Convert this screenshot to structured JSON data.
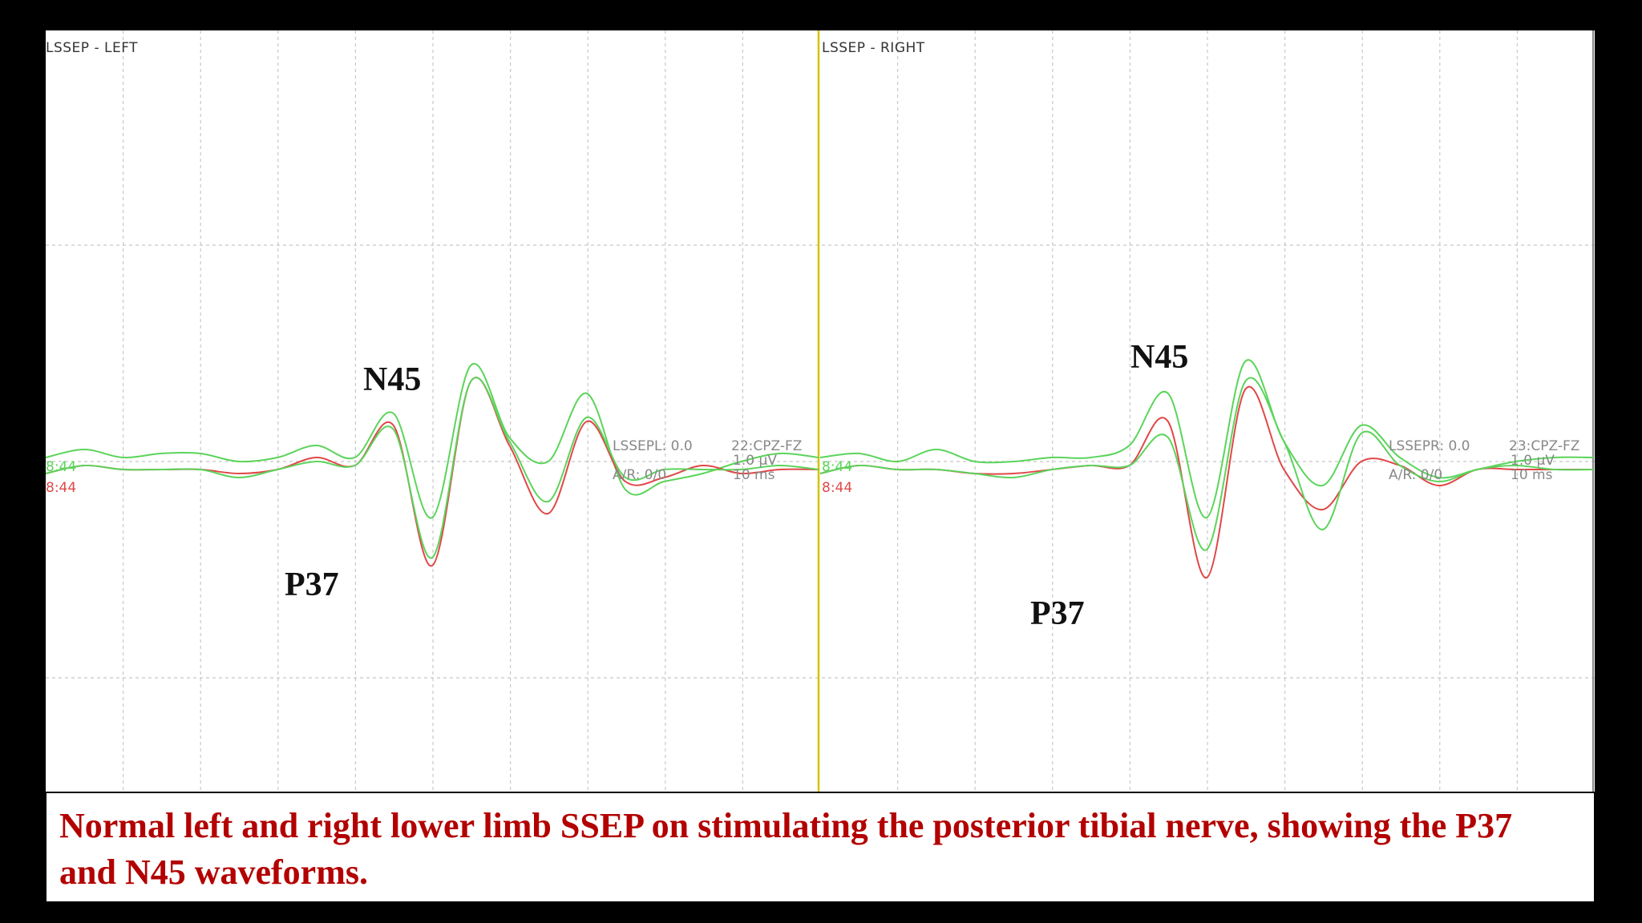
{
  "panels": [
    {
      "title": "LSSEP - LEFT",
      "info": {
        "name": "LSSEPL: 0.0",
        "channel": "22:CPZ-FZ",
        "sensitivity": "1.0 µV",
        "ar": "A/R: 0/0",
        "timebase": "10 ms"
      },
      "trace_labels": [
        "8:44",
        "8:44"
      ]
    },
    {
      "title": "LSSEP - RIGHT",
      "info": {
        "name": "LSSEPR: 0.0",
        "channel": "23:CPZ-FZ",
        "sensitivity": "1.0 µV",
        "ar": "A/R: 0/0",
        "timebase": "10 ms"
      },
      "trace_labels": [
        "8:44",
        "8:44"
      ]
    }
  ],
  "peaks": [
    {
      "label": "N45"
    },
    {
      "label": "P37"
    },
    {
      "label": "N45"
    },
    {
      "label": "P37"
    }
  ],
  "caption": "Normal left and right lower limb SSEP on stimulating the posterior tibial nerve, showing the P37 and N45 waveforms.",
  "colors": {
    "trace_green": "#5bd45b",
    "trace_red": "#e04848",
    "divider": "#d4c400",
    "grid": "#c8c8c8",
    "caption": "#b30000"
  },
  "chart_data": {
    "type": "line",
    "x_unit": "ms",
    "x_per_division": 10,
    "y_per_division": 1.0,
    "panels": [
      {
        "name": "LSSEP - LEFT",
        "series": [
          {
            "color": "green",
            "x": [
              0,
              5,
              10,
              15,
              20,
              25,
              30,
              35,
              40,
              45,
              50,
              55,
              60,
              65,
              70,
              75,
              80,
              85,
              90,
              95,
              100
            ],
            "y": [
              0.05,
              0.15,
              0.05,
              0.1,
              0.1,
              0.0,
              0.05,
              0.2,
              0.05,
              0.6,
              -0.7,
              1.2,
              0.3,
              0.0,
              0.85,
              -0.35,
              -0.25,
              -0.15,
              0.0,
              0.1,
              0.05
            ]
          },
          {
            "color": "red",
            "x": [
              0,
              5,
              10,
              15,
              20,
              25,
              30,
              35,
              40,
              45,
              50,
              55,
              60,
              65,
              70,
              75,
              80,
              85,
              90,
              95,
              100
            ],
            "y": [
              -0.15,
              -0.05,
              -0.1,
              -0.1,
              -0.1,
              -0.15,
              -0.1,
              0.05,
              -0.05,
              0.45,
              -1.3,
              1.0,
              0.2,
              -0.65,
              0.5,
              -0.25,
              -0.2,
              -0.05,
              -0.15,
              -0.1,
              -0.1
            ]
          },
          {
            "color": "green",
            "x": [
              0,
              5,
              10,
              15,
              20,
              25,
              30,
              35,
              40,
              45,
              50,
              55,
              60,
              65,
              70,
              75,
              80,
              85,
              90,
              95,
              100
            ],
            "y": [
              -0.15,
              -0.05,
              -0.1,
              -0.1,
              -0.1,
              -0.2,
              -0.1,
              0.0,
              -0.05,
              0.4,
              -1.2,
              1.0,
              0.25,
              -0.5,
              0.55,
              -0.2,
              -0.1,
              -0.1,
              -0.1,
              -0.05,
              -0.1
            ]
          }
        ]
      },
      {
        "name": "LSSEP - RIGHT",
        "series": [
          {
            "color": "green",
            "x": [
              0,
              5,
              10,
              15,
              20,
              25,
              30,
              35,
              40,
              45,
              50,
              55,
              60,
              65,
              70,
              75,
              80,
              85,
              90,
              95,
              100
            ],
            "y": [
              0.05,
              0.1,
              0.0,
              0.15,
              0.0,
              0.0,
              0.05,
              0.05,
              0.2,
              0.85,
              -0.7,
              1.25,
              0.25,
              -0.3,
              0.45,
              0.05,
              -0.2,
              -0.1,
              0.0,
              0.05,
              0.05
            ]
          },
          {
            "color": "red",
            "x": [
              0,
              5,
              10,
              15,
              20,
              25,
              30,
              35,
              40,
              45,
              50,
              55,
              60,
              65,
              70,
              75,
              80,
              85,
              90,
              95,
              100
            ],
            "y": [
              -0.15,
              -0.05,
              -0.1,
              -0.1,
              -0.15,
              -0.15,
              -0.1,
              -0.05,
              -0.05,
              0.5,
              -1.45,
              0.9,
              -0.1,
              -0.6,
              0.0,
              -0.05,
              -0.3,
              -0.1,
              -0.1,
              -0.1,
              -0.1
            ]
          },
          {
            "color": "green",
            "x": [
              0,
              5,
              10,
              15,
              20,
              25,
              30,
              35,
              40,
              45,
              50,
              55,
              60,
              65,
              70,
              75,
              80,
              85,
              90,
              95,
              100
            ],
            "y": [
              -0.15,
              -0.05,
              -0.1,
              -0.1,
              -0.15,
              -0.2,
              -0.1,
              -0.05,
              -0.05,
              0.3,
              -1.1,
              1.0,
              0.25,
              -0.85,
              0.35,
              -0.05,
              -0.25,
              -0.1,
              -0.05,
              -0.1,
              -0.1
            ]
          }
        ]
      }
    ],
    "annotations": [
      "N45",
      "P37",
      "N45",
      "P37"
    ],
    "grid": true
  }
}
